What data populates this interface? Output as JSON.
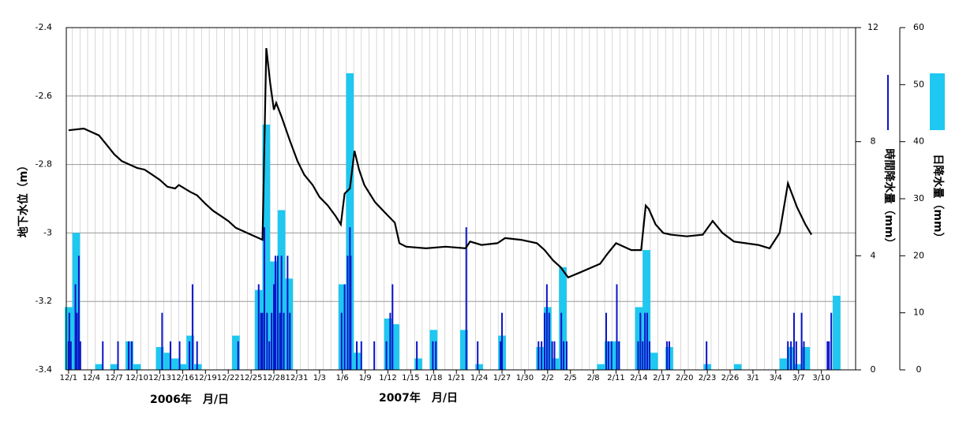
{
  "chart_data": {
    "type": "bar_line",
    "y_label": "地下水位（m）",
    "y2_label": "時間降水量（mm）",
    "y3_label": "日降水量（mm）",
    "year_labels": [
      "2006年　月/日",
      "2007年　月/日"
    ],
    "xlim": [
      -0.3,
      103.5
    ],
    "xticks": [
      {
        "value": 0,
        "label": "12/1"
      },
      {
        "value": 3,
        "label": "12/4"
      },
      {
        "value": 6,
        "label": "12/7"
      },
      {
        "value": 9,
        "label": "12/10"
      },
      {
        "value": 12,
        "label": "12/13"
      },
      {
        "value": 15,
        "label": "12/16"
      },
      {
        "value": 18,
        "label": "12/19"
      },
      {
        "value": 21,
        "label": "12/22"
      },
      {
        "value": 24,
        "label": "12/25"
      },
      {
        "value": 27,
        "label": "12/28"
      },
      {
        "value": 30,
        "label": "12/31"
      },
      {
        "value": 33,
        "label": "1/3"
      },
      {
        "value": 36,
        "label": "1/6"
      },
      {
        "value": 39,
        "label": "1/9"
      },
      {
        "value": 42,
        "label": "1/12"
      },
      {
        "value": 45,
        "label": "1/15"
      },
      {
        "value": 48,
        "label": "1/18"
      },
      {
        "value": 51,
        "label": "1/21"
      },
      {
        "value": 54,
        "label": "1/24"
      },
      {
        "value": 57,
        "label": "1/27"
      },
      {
        "value": 60,
        "label": "1/30"
      },
      {
        "value": 63,
        "label": "2/2"
      },
      {
        "value": 66,
        "label": "2/5"
      },
      {
        "value": 69,
        "label": "2/8"
      },
      {
        "value": 72,
        "label": "2/11"
      },
      {
        "value": 75,
        "label": "2/14"
      },
      {
        "value": 78,
        "label": "2/17"
      },
      {
        "value": 81,
        "label": "2/20"
      },
      {
        "value": 84,
        "label": "2/23"
      },
      {
        "value": 87,
        "label": "2/26"
      },
      {
        "value": 90,
        "label": "3/1"
      },
      {
        "value": 93,
        "label": "3/4"
      },
      {
        "value": 96,
        "label": "3/7"
      },
      {
        "value": 99,
        "label": "3/10"
      }
    ],
    "ylim": [
      -3.4,
      -2.4
    ],
    "yticks": [
      -3.4,
      -3.2,
      -3,
      -2.8,
      -2.6,
      -2.4
    ],
    "y2lim": [
      0,
      12
    ],
    "y2ticks": [
      0,
      4,
      8,
      12
    ],
    "y3lim": [
      0,
      60
    ],
    "y3ticks": [
      0,
      10,
      20,
      30,
      40,
      50,
      60
    ],
    "grid": true,
    "series": [
      {
        "type": "bar",
        "axis": "y3",
        "color": "#1ec8f0",
        "x": [
          0,
          1,
          4,
          6,
          8,
          9,
          12,
          13,
          14,
          15,
          16,
          17,
          22,
          25,
          26,
          27,
          28,
          29,
          36,
          37,
          38,
          42,
          43,
          46,
          48,
          52,
          54,
          57,
          62,
          63,
          64,
          65,
          70,
          71,
          72,
          75,
          76,
          77,
          79,
          84,
          88,
          94,
          95,
          96,
          97,
          101
        ],
        "values": [
          11,
          24,
          1,
          1,
          5,
          1,
          4,
          3,
          2,
          1,
          6,
          1,
          6,
          14,
          43,
          19,
          28,
          16,
          15,
          52,
          3,
          9,
          8,
          2,
          7,
          7,
          1,
          6,
          4,
          11,
          2,
          18,
          1,
          5,
          5,
          11,
          21,
          3,
          4,
          1,
          1,
          2,
          4,
          1,
          4,
          13
        ]
      },
      {
        "type": "bar",
        "axis": "y2",
        "color": "#0a14c8",
        "x": [
          0,
          0.1,
          0.3,
          0.9,
          1.1,
          1.35,
          1.55,
          4.5,
          6.5,
          7.9,
          8.3,
          12.3,
          13.4,
          14.6,
          15.9,
          16.3,
          16.9,
          22.3,
          25,
          25.3,
          25.5,
          25.75,
          26.1,
          26.4,
          26.7,
          27,
          27.2,
          27.5,
          27.8,
          28,
          28.3,
          28.8,
          29.1,
          35.9,
          36.3,
          36.7,
          37,
          37.1,
          37.9,
          38.5,
          40.2,
          41.8,
          42.3,
          42.6,
          45.8,
          47.9,
          48.3,
          52.3,
          53.8,
          56.8,
          57,
          61.8,
          62.2,
          62.6,
          62.9,
          63.2,
          63.6,
          63.9,
          64.8,
          65.1,
          65.5,
          70.7,
          71,
          71.4,
          72.1,
          72.4,
          74.9,
          75.2,
          75.5,
          75.8,
          76.1,
          76.4,
          78.7,
          79,
          83.9,
          94.6,
          95,
          95.4,
          95.7,
          96.4,
          96.7,
          99.8,
          100,
          100.3
        ],
        "values": [
          1,
          2,
          1,
          3,
          2,
          4,
          1,
          1,
          1,
          1,
          1,
          2,
          1,
          1,
          1,
          3,
          1,
          1,
          3,
          2,
          2,
          5,
          2,
          1,
          2,
          3,
          4,
          4,
          2,
          4,
          2,
          4,
          2,
          2,
          3,
          4,
          5,
          4,
          1,
          1,
          1,
          1,
          2,
          3,
          1,
          1,
          1,
          5,
          1,
          1,
          2,
          1,
          1,
          2,
          3,
          2,
          1,
          1,
          2,
          1,
          1,
          2,
          1,
          1,
          3,
          1,
          1,
          2,
          1,
          2,
          2,
          1,
          1,
          1,
          1,
          1,
          1,
          2,
          1,
          2,
          1,
          1,
          1,
          2
        ]
      },
      {
        "type": "line",
        "color": "#000000",
        "x": [
          0,
          2,
          3,
          4,
          5.1,
          6,
          7,
          8,
          9,
          10,
          11,
          12,
          13,
          14,
          14.5,
          16,
          16.9,
          18,
          19,
          20,
          21,
          22,
          23,
          24,
          25,
          25.5,
          26,
          26.5,
          27,
          27.3,
          28,
          29.1,
          30.1,
          31,
          32.1,
          33,
          34.1,
          35.1,
          35.8,
          36.3,
          37,
          37.6,
          38.2,
          38.9,
          40.3,
          41.8,
          42.9,
          43.5,
          44.4,
          47,
          49.6,
          52.2,
          52.8,
          54.3,
          56.4,
          57.4,
          59.5,
          61.6,
          62.6,
          63.7,
          64.7,
          65.7,
          67.3,
          69.9,
          70.9,
          72,
          73,
          74,
          75.3,
          75.9,
          76.3,
          77.2,
          78.2,
          79.2,
          81.3,
          83.4,
          84.7,
          86,
          87.5,
          90.7,
          92.2,
          93.5,
          94.6,
          95.8,
          96.9,
          97.7
        ],
        "values": [
          -2.7,
          -2.695,
          -2.705,
          -2.715,
          -2.745,
          -2.77,
          -2.79,
          -2.8,
          -2.81,
          -2.815,
          -2.83,
          -2.845,
          -2.865,
          -2.87,
          -2.86,
          -2.88,
          -2.89,
          -2.915,
          -2.935,
          -2.95,
          -2.965,
          -2.985,
          -2.995,
          -3.005,
          -3.015,
          -3.02,
          -2.46,
          -2.56,
          -2.64,
          -2.62,
          -2.66,
          -2.73,
          -2.79,
          -2.83,
          -2.86,
          -2.895,
          -2.92,
          -2.95,
          -2.975,
          -2.885,
          -2.87,
          -2.76,
          -2.815,
          -2.86,
          -2.91,
          -2.945,
          -2.97,
          -3.03,
          -3.04,
          -3.045,
          -3.04,
          -3.045,
          -3.025,
          -3.035,
          -3.03,
          -3.015,
          -3.02,
          -3.03,
          -3.05,
          -3.08,
          -3.1,
          -3.13,
          -3.115,
          -3.09,
          -3.06,
          -3.03,
          -3.04,
          -3.05,
          -3.05,
          -2.92,
          -2.93,
          -2.975,
          -3,
          -3.005,
          -3.01,
          -3.005,
          -2.965,
          -3,
          -3.025,
          -3.035,
          -3.045,
          -3,
          -2.855,
          -2.925,
          -2.975,
          -3.005
        ]
      }
    ]
  }
}
